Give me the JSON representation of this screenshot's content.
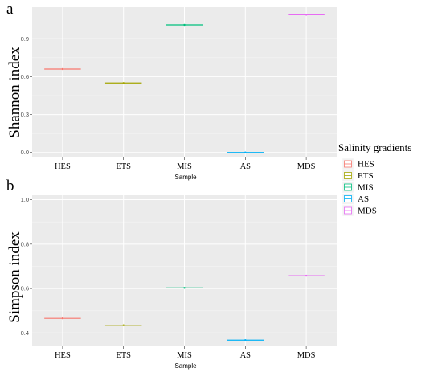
{
  "legend": {
    "title": "Salinity gradients",
    "items": [
      {
        "label": "HES",
        "color": "#F8766D"
      },
      {
        "label": "ETS",
        "color": "#A3A500"
      },
      {
        "label": "MIS",
        "color": "#00BF7D"
      },
      {
        "label": "AS",
        "color": "#00B0F6"
      },
      {
        "label": "MDS",
        "color": "#E76BF3"
      }
    ]
  },
  "chart_data": [
    {
      "panel": "a",
      "type": "box",
      "categories": [
        "HES",
        "ETS",
        "MIS",
        "AS",
        "MDS"
      ],
      "values": [
        0.66,
        0.55,
        1.01,
        0.0,
        1.09
      ],
      "ylabel": "Shannon index",
      "xlabel": "Sample",
      "ylim": [
        -0.04,
        1.15
      ],
      "yticks": [
        0.0,
        0.3,
        0.6,
        0.9
      ],
      "ytick_labels": [
        "0.0",
        "0.3",
        "0.6",
        "0.9"
      ],
      "grid": true
    },
    {
      "panel": "b",
      "type": "box",
      "categories": [
        "HES",
        "ETS",
        "MIS",
        "AS",
        "MDS"
      ],
      "values": [
        0.466,
        0.435,
        0.603,
        0.368,
        0.658
      ],
      "ylabel": "Simpson index",
      "xlabel": "Sample",
      "ylim": [
        0.34,
        1.02
      ],
      "yticks": [
        0.4,
        0.6,
        0.8,
        1.0
      ],
      "ytick_labels": [
        "0.4",
        "0.6",
        "0.8",
        "1.0"
      ],
      "grid": true
    }
  ]
}
